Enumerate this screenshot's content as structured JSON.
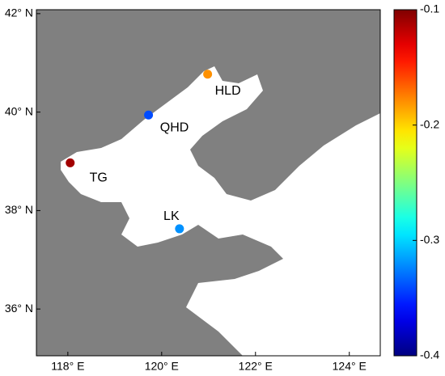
{
  "chart_data": {
    "type": "map",
    "xlim": [
      117.33,
      124.66
    ],
    "ylim": [
      35.05,
      42.08
    ],
    "xticks": [
      {
        "value": 118,
        "label": "118° E"
      },
      {
        "value": 120,
        "label": "120° E"
      },
      {
        "value": 122,
        "label": "122° E"
      },
      {
        "value": 124,
        "label": "124° E"
      }
    ],
    "yticks": [
      {
        "value": 36,
        "label": "36° N"
      },
      {
        "value": 38,
        "label": "38° N"
      },
      {
        "value": 40,
        "label": "40° N"
      },
      {
        "value": 42,
        "label": "42° N"
      }
    ],
    "land_color": "#808080",
    "points": [
      {
        "name": "HLD",
        "lon": 120.98,
        "lat": 40.77,
        "value": -0.18
      },
      {
        "name": "QHD",
        "lon": 119.72,
        "lat": 39.94,
        "value": -0.34
      },
      {
        "name": "TG",
        "lon": 118.05,
        "lat": 38.97,
        "value": -0.11
      },
      {
        "name": "LK",
        "lon": 120.38,
        "lat": 37.63,
        "value": -0.32
      }
    ],
    "colorbar": {
      "clim": [
        -0.4,
        -0.1
      ],
      "ticks": [
        -0.4,
        -0.3,
        -0.2,
        -0.1
      ],
      "colormap": "jet"
    }
  }
}
